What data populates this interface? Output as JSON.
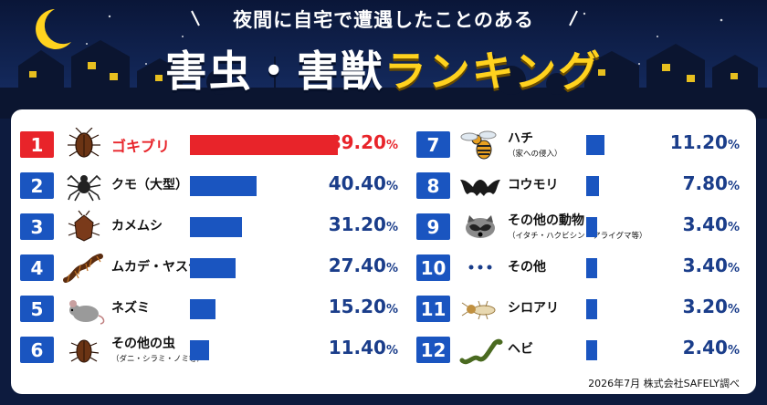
{
  "header": {
    "subtitle": "夜間に自宅で遭遇したことのある",
    "title_white": "害虫・害獣",
    "title_yellow": "ランキング"
  },
  "chart_data": {
    "type": "bar",
    "unit": "%",
    "items": [
      {
        "rank": "1",
        "name": "ゴキブリ",
        "note": "",
        "value": 89.2,
        "label": "89.20",
        "icon": "cockroach-icon",
        "highlight": true
      },
      {
        "rank": "2",
        "name": "クモ（大型）",
        "note": "",
        "value": 40.4,
        "label": "40.40",
        "icon": "spider-icon",
        "highlight": false
      },
      {
        "rank": "3",
        "name": "カメムシ",
        "note": "",
        "value": 31.2,
        "label": "31.20",
        "icon": "stink-bug-icon",
        "highlight": false
      },
      {
        "rank": "4",
        "name": "ムカデ・ヤスデ",
        "note": "",
        "value": 27.4,
        "label": "27.40",
        "icon": "centipede-icon",
        "highlight": false
      },
      {
        "rank": "5",
        "name": "ネズミ",
        "note": "",
        "value": 15.2,
        "label": "15.20",
        "icon": "mouse-icon",
        "highlight": false
      },
      {
        "rank": "6",
        "name": "その他の虫",
        "note": "（ダニ・シラミ・ノミ等）",
        "value": 11.4,
        "label": "11.40",
        "icon": "bug-icon",
        "highlight": false
      },
      {
        "rank": "7",
        "name": "ハチ",
        "note": "（家への侵入）",
        "value": 11.2,
        "label": "11.20",
        "icon": "wasp-icon",
        "highlight": false
      },
      {
        "rank": "8",
        "name": "コウモリ",
        "note": "",
        "value": 7.8,
        "label": "7.80",
        "icon": "bat-icon",
        "highlight": false
      },
      {
        "rank": "9",
        "name": "その他の動物",
        "note": "（イタチ・ハクビシン・アライグマ等）",
        "value": 3.4,
        "label": "3.40",
        "icon": "raccoon-icon",
        "highlight": false
      },
      {
        "rank": "10",
        "name": "その他",
        "note": "",
        "value": 3.4,
        "label": "3.40",
        "icon": "dots-icon",
        "highlight": false
      },
      {
        "rank": "11",
        "name": "シロアリ",
        "note": "",
        "value": 3.2,
        "label": "3.20",
        "icon": "termite-icon",
        "highlight": false
      },
      {
        "rank": "12",
        "name": "ヘビ",
        "note": "",
        "value": 2.4,
        "label": "2.40",
        "icon": "snake-icon",
        "highlight": false
      }
    ]
  },
  "footnote": "2026年7月 株式会社SAFELY調べ"
}
